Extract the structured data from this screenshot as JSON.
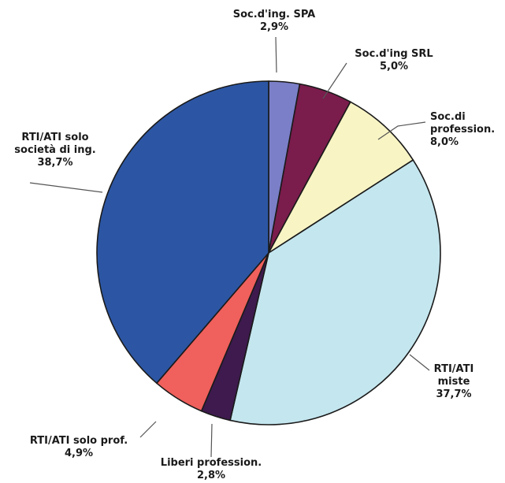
{
  "chart_data": {
    "type": "pie",
    "title": "",
    "slices": [
      {
        "label_lines": [
          "Soc.d'ing. SPA"
        ],
        "value_label": "2,9%",
        "value": 2.9,
        "color": "#7b7fc8"
      },
      {
        "label_lines": [
          "Soc.d'ing SRL"
        ],
        "value_label": "5,0%",
        "value": 5.0,
        "color": "#7a1c4c"
      },
      {
        "label_lines": [
          "Soc.di",
          "profession."
        ],
        "value_label": "8,0%",
        "value": 8.0,
        "color": "#f8f4c4"
      },
      {
        "label_lines": [
          "RTI/ATI",
          "miste"
        ],
        "value_label": "37,7%",
        "value": 37.7,
        "color": "#c4e6ef"
      },
      {
        "label_lines": [
          "Liberi profession."
        ],
        "value_label": "2,8%",
        "value": 2.8,
        "color": "#3e1a4e"
      },
      {
        "label_lines": [
          "RTI/ATI solo prof."
        ],
        "value_label": "4,9%",
        "value": 4.9,
        "color": "#f0605c"
      },
      {
        "label_lines": [
          "RTI/ATI solo",
          "società di ing."
        ],
        "value_label": "38,7%",
        "value": 38.7,
        "color": "#2c56a4"
      }
    ]
  }
}
